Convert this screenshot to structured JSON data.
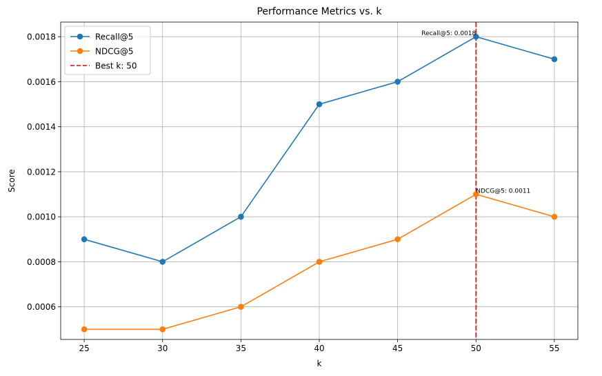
{
  "chart_data": {
    "type": "line",
    "title": "Performance Metrics vs. k",
    "xlabel": "k",
    "ylabel": "Score",
    "x": [
      25,
      30,
      35,
      40,
      45,
      50,
      55
    ],
    "xlim": [
      23.5,
      56.5
    ],
    "ylim": [
      0.000455,
      0.001865
    ],
    "xticks": [
      25,
      30,
      35,
      40,
      45,
      50,
      55
    ],
    "xtick_labels": [
      "25",
      "30",
      "35",
      "40",
      "45",
      "50",
      "55"
    ],
    "yticks": [
      0.0006,
      0.0008,
      0.001,
      0.0012,
      0.0014,
      0.0016,
      0.0018
    ],
    "ytick_labels": [
      "0.0006",
      "0.0008",
      "0.0010",
      "0.0012",
      "0.0014",
      "0.0016",
      "0.0018"
    ],
    "grid": true,
    "legend_position": "top-left",
    "series": [
      {
        "name": "Recall@5",
        "color": "#1f77b4",
        "marker": "circle",
        "values": [
          0.0009,
          0.0008,
          0.001,
          0.0015,
          0.0016,
          0.0018,
          0.0017
        ]
      },
      {
        "name": "NDCG@5",
        "color": "#ff7f0e",
        "marker": "circle",
        "values": [
          0.0005,
          0.0005,
          0.0006,
          0.0008,
          0.0009,
          0.0011,
          0.001
        ]
      }
    ],
    "reference_line": {
      "name": "Best k: 50",
      "x": 50,
      "color": "#d62728",
      "style": "dashed"
    },
    "annotations": [
      {
        "text": "Recall@5: 0.0018",
        "x": 50,
        "y": 0.0018,
        "align": "end"
      },
      {
        "text": "NDCG@5: 0.0011",
        "x": 50,
        "y": 0.0011,
        "align": "start"
      }
    ]
  }
}
